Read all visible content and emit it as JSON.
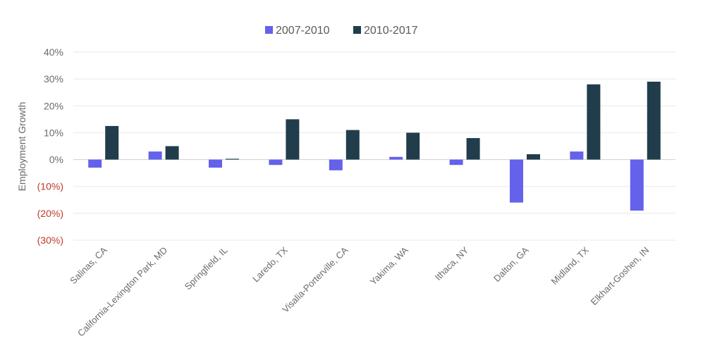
{
  "chart_data": {
    "type": "bar",
    "ylabel": "Employment Growth",
    "categories": [
      "Salinas, CA",
      "California-Lexington Park, MD",
      "Springfield, IL",
      "Laredo, TX",
      "Visalia-Porterville, CA",
      "Yakima, WA",
      "Ithaca, NY",
      "Dalton, GA",
      "Midland, TX",
      "Elkhart-Goshen, IN"
    ],
    "series": [
      {
        "name": "2007-2010",
        "color": "#6461ea",
        "values": [
          -3,
          3,
          -3,
          -2,
          -4,
          1,
          -2,
          -16,
          3,
          -19
        ]
      },
      {
        "name": "2010-2017",
        "color": "#213d4c",
        "values": [
          12.5,
          5,
          0.3,
          15,
          11,
          10,
          8,
          2,
          28,
          29
        ]
      }
    ],
    "ylim": [
      -30,
      40
    ],
    "yticks": [
      {
        "value": 40,
        "label": "40%"
      },
      {
        "value": 30,
        "label": "30%"
      },
      {
        "value": 20,
        "label": "20%"
      },
      {
        "value": 10,
        "label": "10%"
      },
      {
        "value": 0,
        "label": "0%"
      },
      {
        "value": -10,
        "label": "(10%)"
      },
      {
        "value": -20,
        "label": "(20%)"
      },
      {
        "value": -30,
        "label": "(30%)"
      }
    ],
    "negative_label_color": "#c0392b",
    "positive_label_color": "#6b6b6b",
    "grid": true,
    "legend_position": "top-center"
  }
}
